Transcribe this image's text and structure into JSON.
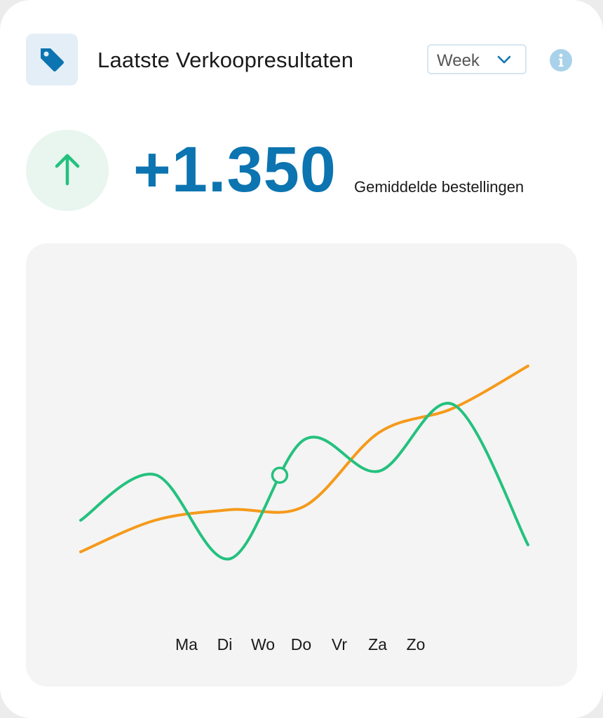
{
  "header": {
    "title": "Laatste Verkoopresultaten",
    "tag_icon": "tag-icon",
    "period_select": {
      "selected": "Week",
      "icon": "chevron-down-icon"
    },
    "info_icon": "info-icon"
  },
  "metric": {
    "value": "+1.350",
    "label": "Gemiddelde bestellingen",
    "trend_icon": "arrow-up-icon"
  },
  "colors": {
    "accent_blue": "#0c74b0",
    "green": "#24c17e",
    "orange": "#f59a1b",
    "info_light_blue": "#a9d2ea"
  },
  "chart_data": {
    "type": "line",
    "categories": [
      "Ma",
      "Di",
      "Wo",
      "Do",
      "Vr",
      "Za",
      "Zo"
    ],
    "series": [
      {
        "values": [
          0.7,
          1.35,
          0.15,
          1.85,
          1.4,
          2.35,
          0.35
        ],
        "color": "#24c17e"
      },
      {
        "values": [
          0.25,
          0.7,
          0.85,
          0.9,
          1.95,
          2.3,
          2.9
        ],
        "color": "#f59a1b"
      }
    ],
    "highlight": {
      "series": 0,
      "x": 2.67
    },
    "grid": false,
    "legend": "none"
  }
}
